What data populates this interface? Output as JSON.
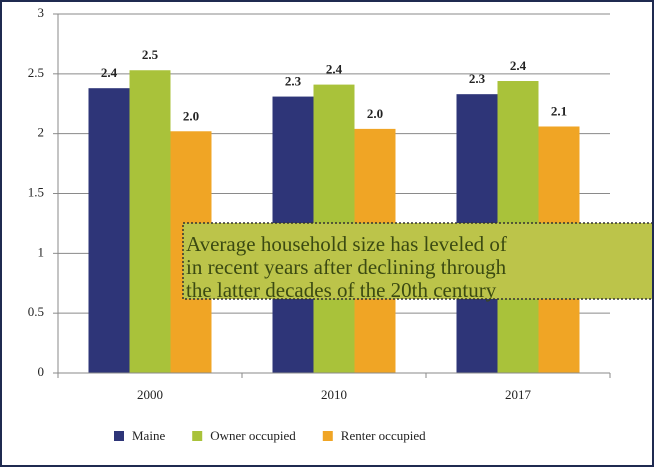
{
  "chart_data": {
    "type": "bar",
    "categories": [
      "2000",
      "2010",
      "2017"
    ],
    "series": [
      {
        "name": "Maine",
        "color": "#2e3578",
        "values": [
          2.38,
          2.31,
          2.33
        ],
        "value_labels": [
          "2.4",
          "2.3",
          "2.3"
        ]
      },
      {
        "name": "Owner occupied",
        "color": "#a9c23a",
        "values": [
          2.53,
          2.41,
          2.44
        ],
        "value_labels": [
          "2.5",
          "2.4",
          "2.4"
        ]
      },
      {
        "name": "Renter occupied",
        "color": "#f0a525",
        "values": [
          2.02,
          2.04,
          2.06
        ],
        "value_labels": [
          "2.0",
          "2.0",
          "2.1"
        ]
      }
    ],
    "ylim": [
      0,
      3
    ],
    "yticks": [
      0,
      0.5,
      1,
      1.5,
      2,
      2.5,
      3
    ],
    "grid": true,
    "legend": "bottom",
    "annotation": [
      "Average household size has leveled of",
      "in recent years after declining through",
      "the latter decades of the 20th century"
    ]
  }
}
